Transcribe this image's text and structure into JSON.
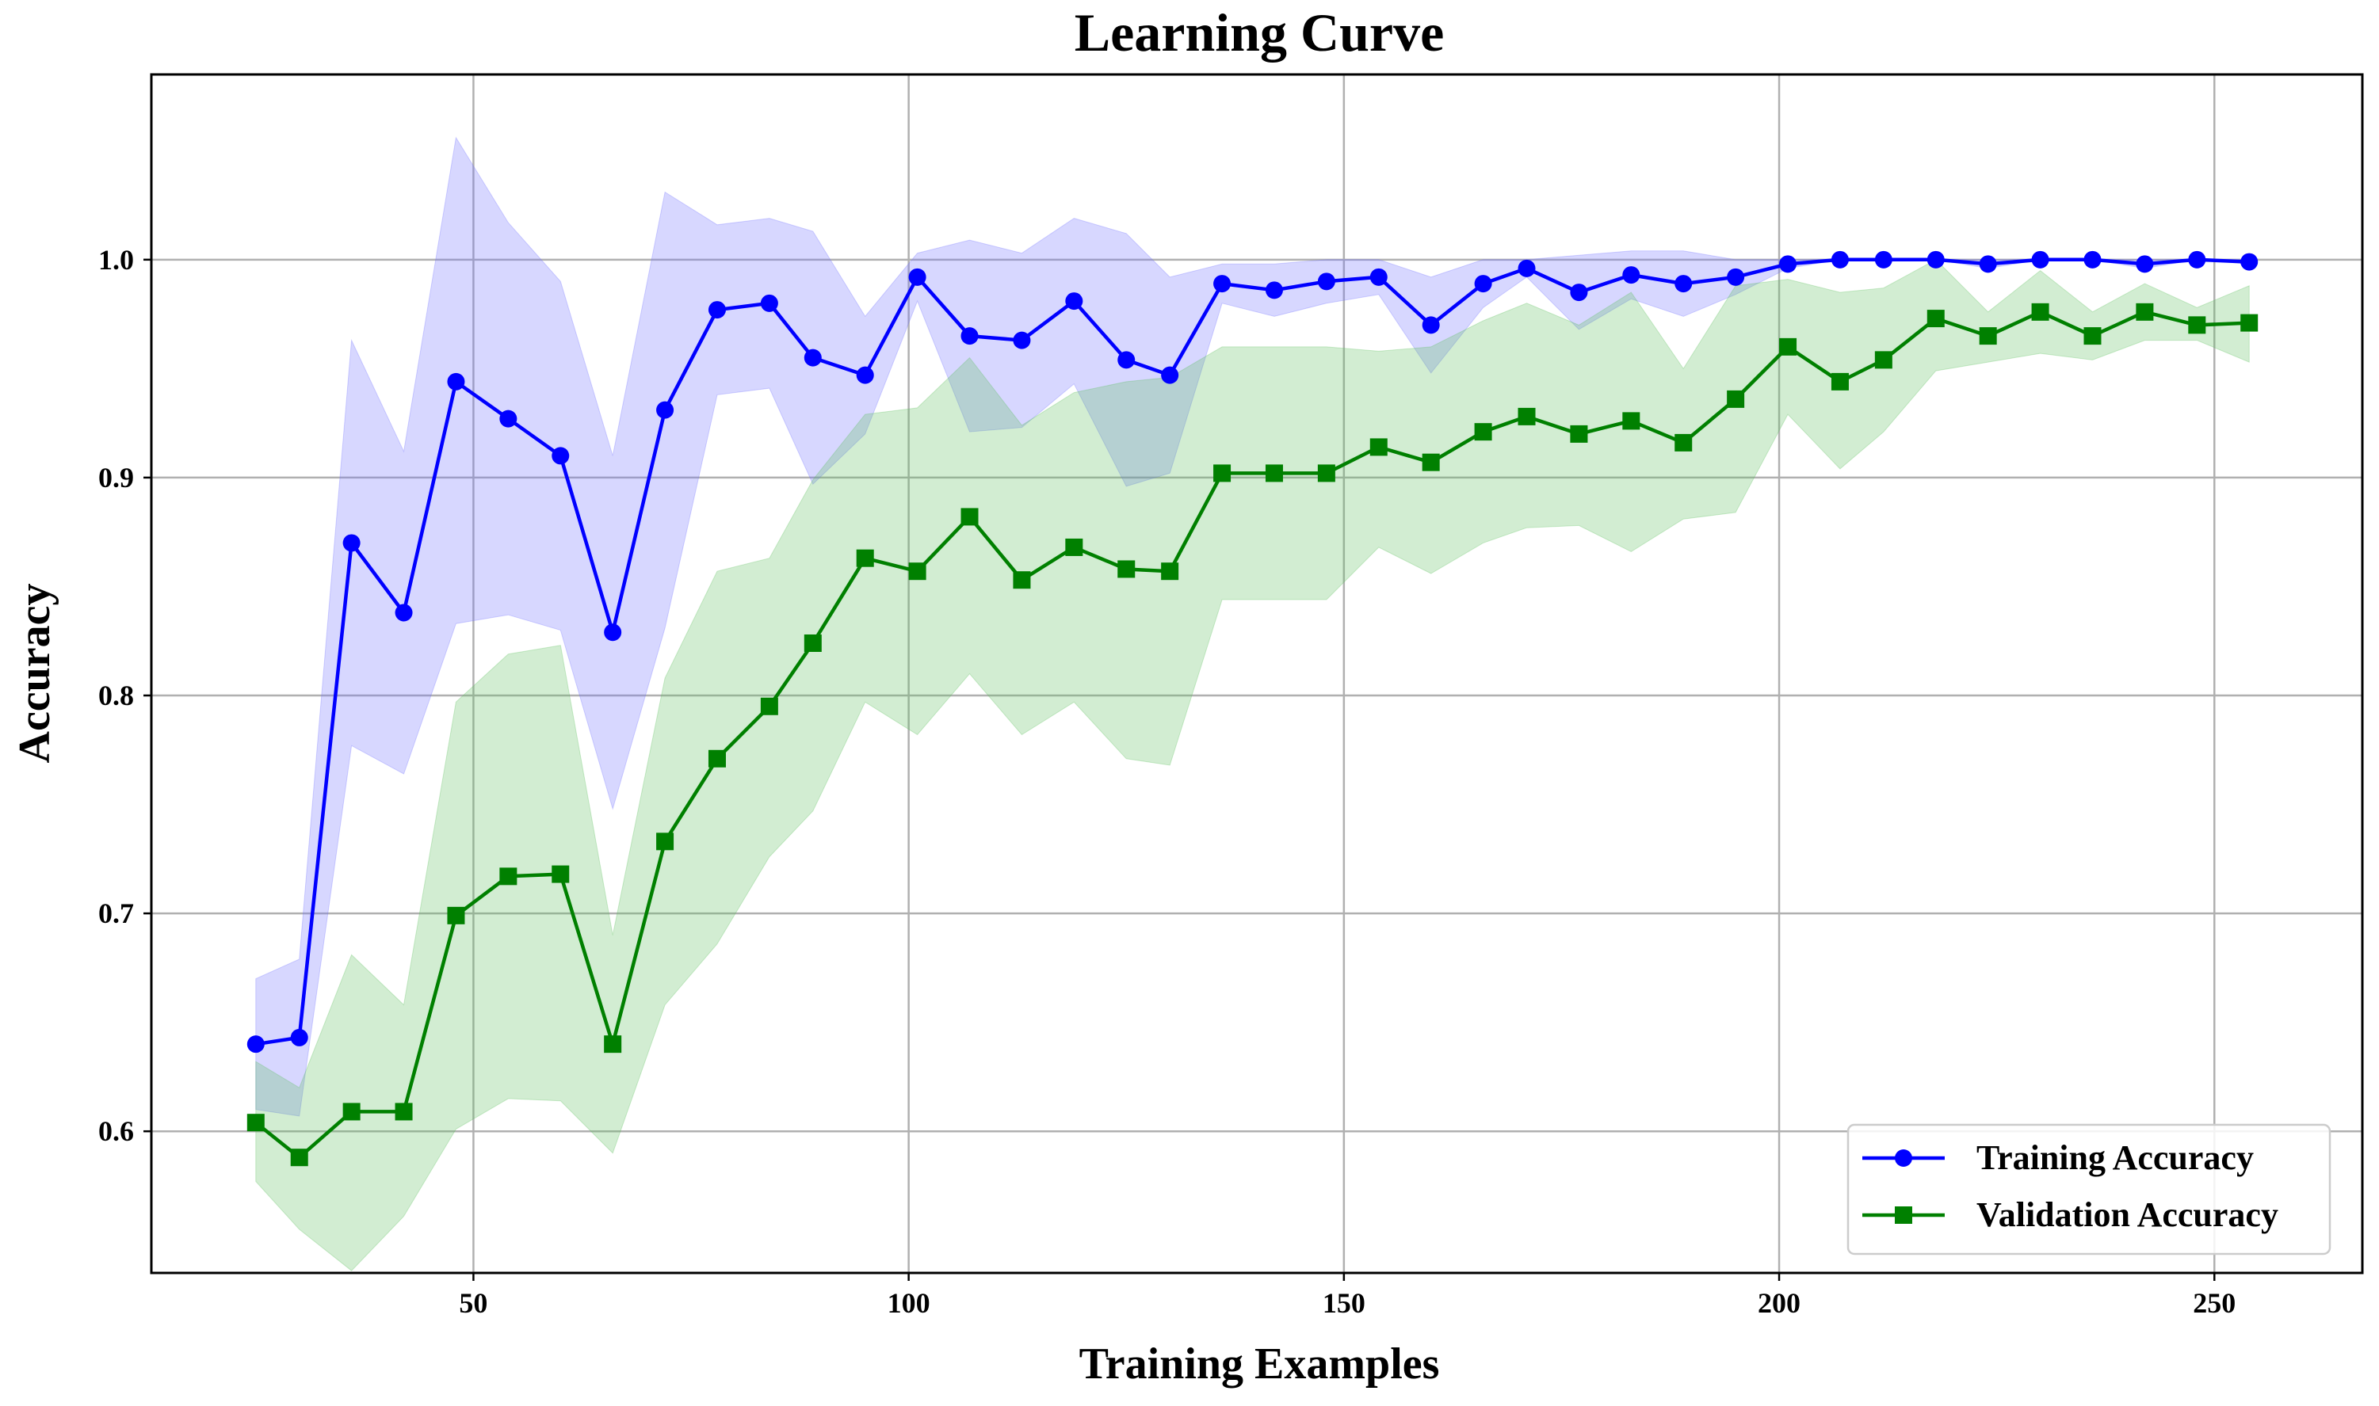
{
  "chart_data": {
    "type": "line",
    "title": "Learning Curve",
    "xlabel": "Training Examples",
    "ylabel": "Accuracy",
    "xlim": [
      13,
      267
    ],
    "ylim": [
      0.535,
      1.085
    ],
    "xticks": [
      50,
      100,
      150,
      200,
      250
    ],
    "yticks": [
      0.6,
      0.7,
      0.8,
      0.9,
      1.0
    ],
    "xtick_labels": [
      "50",
      "100",
      "150",
      "200",
      "250"
    ],
    "ytick_labels": [
      "0.6",
      "0.7",
      "0.8",
      "0.9",
      "1.0"
    ],
    "grid": true,
    "legend_position": "lower-right",
    "x": [
      25,
      30,
      36,
      42,
      48,
      54,
      60,
      66,
      72,
      78,
      84,
      89,
      95,
      101,
      107,
      113,
      119,
      125,
      130,
      136,
      142,
      148,
      154,
      160,
      166,
      171,
      177,
      183,
      189,
      195,
      201,
      207,
      212,
      218,
      224,
      230,
      236,
      242,
      248,
      254
    ],
    "series": [
      {
        "name": "Training Accuracy",
        "color": "#0000ff",
        "marker": "circle",
        "values": [
          0.64,
          0.643,
          0.87,
          0.838,
          0.944,
          0.927,
          0.91,
          0.829,
          0.931,
          0.977,
          0.98,
          0.955,
          0.947,
          0.992,
          0.965,
          0.963,
          0.981,
          0.954,
          0.947,
          0.989,
          0.986,
          0.99,
          0.992,
          0.97,
          0.989,
          0.996,
          0.985,
          0.993,
          0.989,
          0.992,
          0.998,
          1.0,
          1.0,
          1.0,
          0.998,
          1.0,
          1.0,
          0.998,
          1.0,
          0.999
        ],
        "band_upper": [
          0.67,
          0.679,
          0.963,
          0.912,
          1.056,
          1.017,
          0.99,
          0.91,
          1.031,
          1.016,
          1.019,
          1.013,
          0.974,
          1.003,
          1.009,
          1.003,
          1.019,
          1.012,
          0.992,
          0.998,
          0.998,
          1.0,
          1.0,
          0.992,
          1.0,
          1.0,
          1.002,
          1.004,
          1.004,
          1.0,
          1.0,
          1.0,
          1.0,
          1.0,
          1.0,
          1.0,
          1.0,
          1.0,
          1.0,
          1.0
        ],
        "band_lower": [
          0.61,
          0.607,
          0.777,
          0.764,
          0.833,
          0.837,
          0.83,
          0.748,
          0.831,
          0.938,
          0.941,
          0.897,
          0.92,
          0.981,
          0.921,
          0.923,
          0.943,
          0.896,
          0.902,
          0.98,
          0.974,
          0.98,
          0.984,
          0.948,
          0.978,
          0.992,
          0.968,
          0.982,
          0.974,
          0.984,
          0.996,
          1.0,
          1.0,
          1.0,
          0.996,
          1.0,
          1.0,
          0.996,
          1.0,
          0.998
        ],
        "band_color": "#7070ff"
      },
      {
        "name": "Validation Accuracy",
        "color": "#008000",
        "marker": "square",
        "values": [
          0.604,
          0.588,
          0.609,
          0.609,
          0.699,
          0.717,
          0.718,
          0.64,
          0.733,
          0.771,
          0.795,
          0.824,
          0.863,
          0.857,
          0.882,
          0.853,
          0.868,
          0.858,
          0.857,
          0.902,
          0.902,
          0.902,
          0.914,
          0.907,
          0.921,
          0.928,
          0.92,
          0.926,
          0.916,
          0.936,
          0.96,
          0.944,
          0.954,
          0.973,
          0.965,
          0.976,
          0.965,
          0.976,
          0.97,
          0.971
        ],
        "band_upper": [
          0.632,
          0.62,
          0.681,
          0.658,
          0.797,
          0.819,
          0.823,
          0.69,
          0.808,
          0.857,
          0.863,
          0.899,
          0.929,
          0.932,
          0.955,
          0.924,
          0.939,
          0.944,
          0.946,
          0.96,
          0.96,
          0.96,
          0.958,
          0.96,
          0.972,
          0.98,
          0.97,
          0.985,
          0.95,
          0.988,
          0.991,
          0.985,
          0.987,
          1.0,
          0.976,
          0.995,
          0.976,
          0.989,
          0.978,
          0.988
        ],
        "band_lower": [
          0.577,
          0.555,
          0.536,
          0.561,
          0.601,
          0.615,
          0.614,
          0.59,
          0.658,
          0.686,
          0.726,
          0.747,
          0.797,
          0.782,
          0.81,
          0.782,
          0.797,
          0.771,
          0.768,
          0.844,
          0.844,
          0.844,
          0.868,
          0.856,
          0.87,
          0.877,
          0.878,
          0.866,
          0.881,
          0.884,
          0.929,
          0.904,
          0.921,
          0.949,
          0.953,
          0.957,
          0.954,
          0.963,
          0.963,
          0.953
        ],
        "band_color": "#5cbf5c"
      }
    ]
  }
}
